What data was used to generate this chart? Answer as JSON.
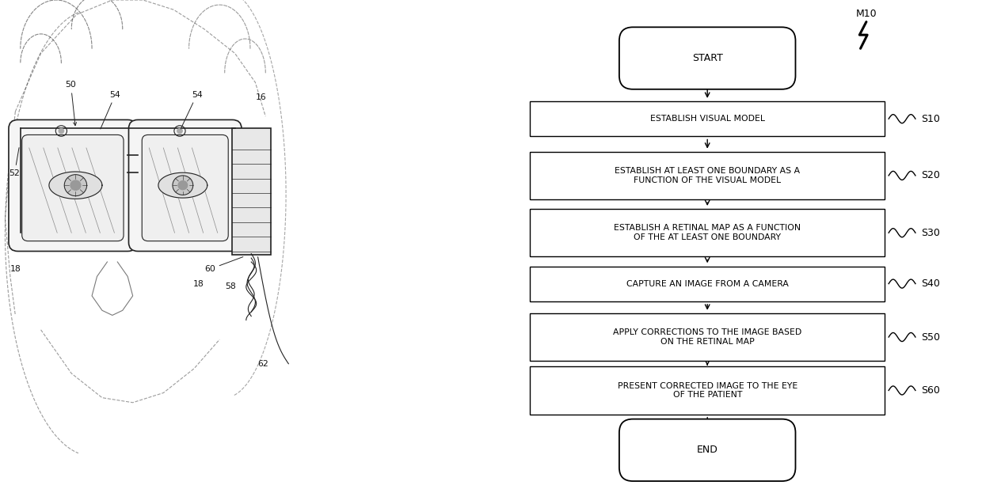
{
  "background_color": "#ffffff",
  "flowchart": {
    "start_label": "START",
    "end_label": "END",
    "steps": [
      {
        "id": "S10",
        "text": "ESTABLISH VISUAL MODEL"
      },
      {
        "id": "S20",
        "text": "ESTABLISH AT LEAST ONE BOUNDARY AS A\nFUNCTION OF THE VISUAL MODEL"
      },
      {
        "id": "S30",
        "text": "ESTABLISH A RETINAL MAP AS A FUNCTION\nOF THE AT LEAST ONE BOUNDARY"
      },
      {
        "id": "S40",
        "text": "CAPTURE AN IMAGE FROM A CAMERA"
      },
      {
        "id": "S50",
        "text": "APPLY CORRECTIONS TO THE IMAGE BASED\nON THE RETINAL MAP"
      },
      {
        "id": "S60",
        "text": "PRESENT CORRECTED IMAGE TO THE EYE\nOF THE PATIENT"
      }
    ],
    "m10_label": "M10",
    "box_color": "#000000",
    "box_fill": "#ffffff",
    "text_color": "#000000",
    "arrow_color": "#000000"
  }
}
